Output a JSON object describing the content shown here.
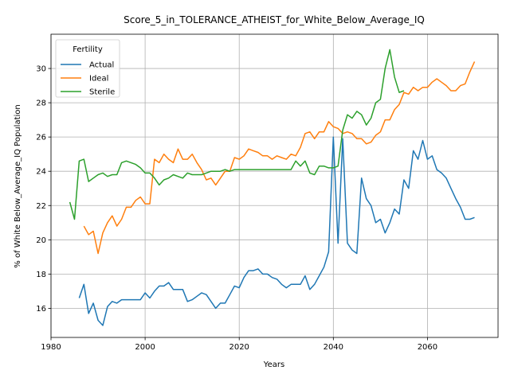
{
  "chart_data": {
    "type": "line",
    "title": "Score_5_in_TOLERANCE_ATHEIST_for_White_Below_Average_IQ",
    "xlabel": "Years",
    "ylabel": "% of White Below_Average_IQ Population",
    "xlim": [
      1980,
      2075
    ],
    "ylim": [
      14.3,
      32.0
    ],
    "xticks": [
      1980,
      2000,
      2020,
      2040,
      2060
    ],
    "yticks": [
      16,
      18,
      20,
      22,
      24,
      26,
      28,
      30
    ],
    "grid": true,
    "legend": {
      "title": "Fertility",
      "placement": "top-left"
    },
    "series": [
      {
        "name": "Actual",
        "color": "#1f77b4",
        "points": [
          [
            1986,
            16.6
          ],
          [
            1987,
            17.4
          ],
          [
            1988,
            15.7
          ],
          [
            1989,
            16.3
          ],
          [
            1990,
            15.3
          ],
          [
            1991,
            15.0
          ],
          [
            1992,
            16.1
          ],
          [
            1993,
            16.4
          ],
          [
            1994,
            16.3
          ],
          [
            1995,
            16.5
          ],
          [
            1996,
            16.5
          ],
          [
            1997,
            16.5
          ],
          [
            1998,
            16.5
          ],
          [
            1999,
            16.5
          ],
          [
            2000,
            16.9
          ],
          [
            2001,
            16.6
          ],
          [
            2002,
            17.0
          ],
          [
            2003,
            17.3
          ],
          [
            2004,
            17.3
          ],
          [
            2005,
            17.5
          ],
          [
            2006,
            17.1
          ],
          [
            2007,
            17.1
          ],
          [
            2008,
            17.1
          ],
          [
            2009,
            16.4
          ],
          [
            2010,
            16.5
          ],
          [
            2011,
            16.7
          ],
          [
            2012,
            16.9
          ],
          [
            2013,
            16.8
          ],
          [
            2014,
            16.4
          ],
          [
            2015,
            16.0
          ],
          [
            2016,
            16.3
          ],
          [
            2017,
            16.3
          ],
          [
            2018,
            16.8
          ],
          [
            2019,
            17.3
          ],
          [
            2020,
            17.2
          ],
          [
            2021,
            17.8
          ],
          [
            2022,
            18.2
          ],
          [
            2023,
            18.2
          ],
          [
            2024,
            18.3
          ],
          [
            2025,
            18.0
          ],
          [
            2026,
            18.0
          ],
          [
            2027,
            17.8
          ],
          [
            2028,
            17.7
          ],
          [
            2029,
            17.4
          ],
          [
            2030,
            17.2
          ],
          [
            2031,
            17.4
          ],
          [
            2032,
            17.4
          ],
          [
            2033,
            17.4
          ],
          [
            2034,
            17.9
          ],
          [
            2035,
            17.1
          ],
          [
            2036,
            17.4
          ],
          [
            2037,
            17.9
          ],
          [
            2038,
            18.4
          ],
          [
            2039,
            19.3
          ],
          [
            2040,
            26.0
          ],
          [
            2041,
            19.8
          ],
          [
            2042,
            25.9
          ],
          [
            2043,
            19.8
          ],
          [
            2044,
            19.4
          ],
          [
            2045,
            19.2
          ],
          [
            2046,
            23.6
          ],
          [
            2047,
            22.4
          ],
          [
            2048,
            22.0
          ],
          [
            2049,
            21.0
          ],
          [
            2050,
            21.2
          ],
          [
            2051,
            20.4
          ],
          [
            2052,
            21.0
          ],
          [
            2053,
            21.8
          ],
          [
            2054,
            21.5
          ],
          [
            2055,
            23.5
          ],
          [
            2056,
            23.0
          ],
          [
            2057,
            25.2
          ],
          [
            2058,
            24.7
          ],
          [
            2059,
            25.8
          ],
          [
            2060,
            24.7
          ],
          [
            2061,
            24.9
          ],
          [
            2062,
            24.1
          ],
          [
            2063,
            23.9
          ],
          [
            2064,
            23.6
          ],
          [
            2065,
            23.0
          ],
          [
            2066,
            22.4
          ],
          [
            2067,
            21.9
          ],
          [
            2068,
            21.2
          ],
          [
            2069,
            21.2
          ],
          [
            2070,
            21.3
          ]
        ]
      },
      {
        "name": "Ideal",
        "color": "#ff7f0e",
        "points": [
          [
            1987,
            20.8
          ],
          [
            1988,
            20.3
          ],
          [
            1989,
            20.5
          ],
          [
            1990,
            19.2
          ],
          [
            1991,
            20.4
          ],
          [
            1992,
            21.0
          ],
          [
            1993,
            21.4
          ],
          [
            1994,
            20.8
          ],
          [
            1995,
            21.2
          ],
          [
            1996,
            21.9
          ],
          [
            1997,
            21.9
          ],
          [
            1998,
            22.3
          ],
          [
            1999,
            22.5
          ],
          [
            2000,
            22.1
          ],
          [
            2001,
            22.1
          ],
          [
            2002,
            24.7
          ],
          [
            2003,
            24.5
          ],
          [
            2004,
            25.0
          ],
          [
            2005,
            24.7
          ],
          [
            2006,
            24.5
          ],
          [
            2007,
            25.3
          ],
          [
            2008,
            24.7
          ],
          [
            2009,
            24.7
          ],
          [
            2010,
            25.0
          ],
          [
            2011,
            24.5
          ],
          [
            2012,
            24.1
          ],
          [
            2013,
            23.5
          ],
          [
            2014,
            23.6
          ],
          [
            2015,
            23.2
          ],
          [
            2016,
            23.6
          ],
          [
            2017,
            24.0
          ],
          [
            2018,
            24.0
          ],
          [
            2019,
            24.8
          ],
          [
            2020,
            24.7
          ],
          [
            2021,
            24.9
          ],
          [
            2022,
            25.3
          ],
          [
            2023,
            25.2
          ],
          [
            2024,
            25.1
          ],
          [
            2025,
            24.9
          ],
          [
            2026,
            24.9
          ],
          [
            2027,
            24.7
          ],
          [
            2028,
            24.9
          ],
          [
            2029,
            24.8
          ],
          [
            2030,
            24.7
          ],
          [
            2031,
            25.0
          ],
          [
            2032,
            24.9
          ],
          [
            2033,
            25.4
          ],
          [
            2034,
            26.2
          ],
          [
            2035,
            26.3
          ],
          [
            2036,
            25.9
          ],
          [
            2037,
            26.3
          ],
          [
            2038,
            26.3
          ],
          [
            2039,
            26.9
          ],
          [
            2040,
            26.6
          ],
          [
            2041,
            26.5
          ],
          [
            2042,
            26.2
          ],
          [
            2043,
            26.3
          ],
          [
            2044,
            26.2
          ],
          [
            2045,
            25.9
          ],
          [
            2046,
            25.9
          ],
          [
            2047,
            25.6
          ],
          [
            2048,
            25.7
          ],
          [
            2049,
            26.1
          ],
          [
            2050,
            26.3
          ],
          [
            2051,
            27.0
          ],
          [
            2052,
            27.0
          ],
          [
            2053,
            27.6
          ],
          [
            2054,
            27.9
          ],
          [
            2055,
            28.6
          ],
          [
            2056,
            28.5
          ],
          [
            2057,
            28.9
          ],
          [
            2058,
            28.7
          ],
          [
            2059,
            28.9
          ],
          [
            2060,
            28.9
          ],
          [
            2061,
            29.2
          ],
          [
            2062,
            29.4
          ],
          [
            2063,
            29.2
          ],
          [
            2064,
            29.0
          ],
          [
            2065,
            28.7
          ],
          [
            2066,
            28.7
          ],
          [
            2067,
            29.0
          ],
          [
            2068,
            29.1
          ],
          [
            2069,
            29.8
          ],
          [
            2070,
            30.4
          ]
        ]
      },
      {
        "name": "Sterile",
        "color": "#2ca02c",
        "points": [
          [
            1984,
            22.2
          ],
          [
            1985,
            21.2
          ],
          [
            1986,
            24.6
          ],
          [
            1987,
            24.7
          ],
          [
            1988,
            23.4
          ],
          [
            1989,
            23.6
          ],
          [
            1990,
            23.8
          ],
          [
            1991,
            23.9
          ],
          [
            1992,
            23.7
          ],
          [
            1993,
            23.8
          ],
          [
            1994,
            23.8
          ],
          [
            1995,
            24.5
          ],
          [
            1996,
            24.6
          ],
          [
            1997,
            24.5
          ],
          [
            1998,
            24.4
          ],
          [
            1999,
            24.2
          ],
          [
            2000,
            23.9
          ],
          [
            2001,
            23.9
          ],
          [
            2002,
            23.6
          ],
          [
            2003,
            23.2
          ],
          [
            2004,
            23.5
          ],
          [
            2005,
            23.6
          ],
          [
            2006,
            23.8
          ],
          [
            2007,
            23.7
          ],
          [
            2008,
            23.6
          ],
          [
            2009,
            23.9
          ],
          [
            2010,
            23.8
          ],
          [
            2011,
            23.8
          ],
          [
            2012,
            23.8
          ],
          [
            2013,
            23.9
          ],
          [
            2014,
            24.0
          ],
          [
            2015,
            24.0
          ],
          [
            2016,
            24.0
          ],
          [
            2017,
            24.1
          ],
          [
            2018,
            24.0
          ],
          [
            2019,
            24.1
          ],
          [
            2020,
            24.1
          ],
          [
            2021,
            24.1
          ],
          [
            2022,
            24.1
          ],
          [
            2023,
            24.1
          ],
          [
            2024,
            24.1
          ],
          [
            2025,
            24.1
          ],
          [
            2026,
            24.1
          ],
          [
            2027,
            24.1
          ],
          [
            2028,
            24.1
          ],
          [
            2029,
            24.1
          ],
          [
            2030,
            24.1
          ],
          [
            2031,
            24.1
          ],
          [
            2032,
            24.6
          ],
          [
            2033,
            24.3
          ],
          [
            2034,
            24.6
          ],
          [
            2035,
            23.9
          ],
          [
            2036,
            23.8
          ],
          [
            2037,
            24.3
          ],
          [
            2038,
            24.3
          ],
          [
            2039,
            24.2
          ],
          [
            2040,
            24.2
          ],
          [
            2041,
            24.3
          ],
          [
            2042,
            26.4
          ],
          [
            2043,
            27.3
          ],
          [
            2044,
            27.1
          ],
          [
            2045,
            27.5
          ],
          [
            2046,
            27.3
          ],
          [
            2047,
            26.7
          ],
          [
            2048,
            27.1
          ],
          [
            2049,
            28.0
          ],
          [
            2050,
            28.2
          ],
          [
            2051,
            30.0
          ],
          [
            2052,
            31.1
          ],
          [
            2053,
            29.5
          ],
          [
            2054,
            28.6
          ],
          [
            2055,
            28.7
          ]
        ]
      }
    ]
  }
}
